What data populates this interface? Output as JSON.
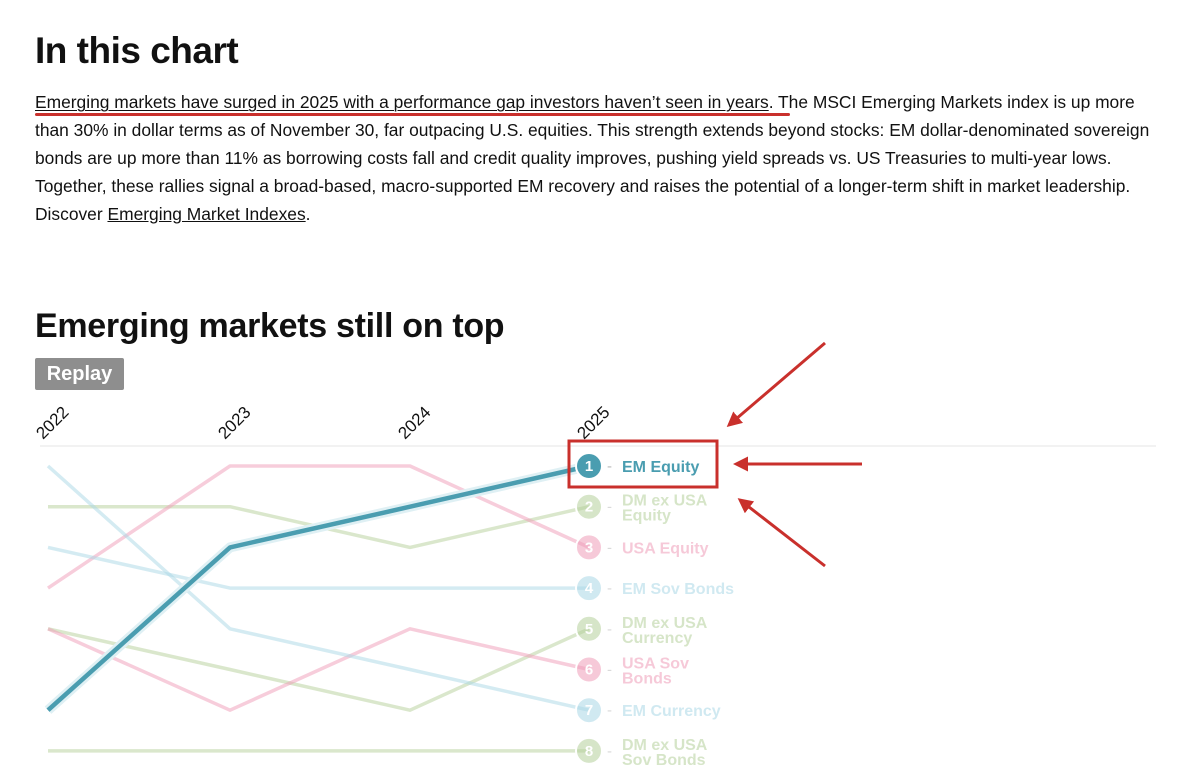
{
  "heading": "In this chart",
  "intro": {
    "highlight": "Emerging markets have surged in 2025 with a performance gap investors haven’t seen in years",
    "body": ". The MSCI Emerging Markets index is up more than 30% in dollar terms as of November 30, far outpacing U.S. equities. This strength extends beyond stocks: EM dollar-denominated sovereign bonds are up more than 11% as borrowing costs fall and credit quality improves, pushing yield spreads vs. US Treasuries to multi-year lows. Together, these rallies signal a broad-based, macro-supported EM recovery and raises the potential of a longer-term shift in market leadership. Discover ",
    "link": "Emerging Market Indexes",
    "end": "."
  },
  "chart_title": "Emerging markets still on top",
  "replay_label": "Replay",
  "colors": {
    "teal": "#4a9db0",
    "green": "#b5cf9a",
    "pink": "#ef9cb8",
    "lightblue": "#a9d7e6",
    "annotation_red": "#c9302c"
  },
  "chart_data": {
    "type": "line",
    "title": "Emerging markets still on top",
    "x": [
      "2022",
      "2023",
      "2024",
      "2025"
    ],
    "y_meaning": "rank (1 = best performing)",
    "ylim": [
      1,
      8
    ],
    "highlighted_series": "EM Equity",
    "series": [
      {
        "name": "EM Equity",
        "rank": 1,
        "color": "teal",
        "values": [
          7,
          3,
          2,
          1
        ]
      },
      {
        "name": "DM ex USA Equity",
        "rank": 2,
        "color": "green",
        "values": [
          2,
          2,
          3,
          2
        ]
      },
      {
        "name": "USA Equity",
        "rank": 3,
        "color": "pink",
        "values": [
          4,
          1,
          1,
          3
        ]
      },
      {
        "name": "EM Sov Bonds",
        "rank": 4,
        "color": "lightblue",
        "values": [
          3,
          4,
          4,
          4
        ]
      },
      {
        "name": "DM ex USA Currency",
        "rank": 5,
        "color": "green",
        "values": [
          5,
          6,
          7,
          5
        ]
      },
      {
        "name": "USA Sov Bonds",
        "rank": 6,
        "color": "pink",
        "values": [
          5,
          7,
          5,
          6
        ]
      },
      {
        "name": "EM Currency",
        "rank": 7,
        "color": "lightblue",
        "values": [
          1,
          5,
          6,
          7
        ]
      },
      {
        "name": "DM ex USA Sov Bonds",
        "rank": 8,
        "color": "green",
        "values": [
          8,
          8,
          8,
          8
        ]
      }
    ],
    "labels": [
      {
        "num": "1",
        "lines": [
          "EM Equity"
        ]
      },
      {
        "num": "2",
        "lines": [
          "DM ex USA",
          "Equity"
        ]
      },
      {
        "num": "3",
        "lines": [
          "USA Equity"
        ]
      },
      {
        "num": "4",
        "lines": [
          "EM Sov Bonds"
        ]
      },
      {
        "num": "5",
        "lines": [
          "DM ex USA",
          "Currency"
        ]
      },
      {
        "num": "6",
        "lines": [
          "USA Sov",
          "Bonds"
        ]
      },
      {
        "num": "7",
        "lines": [
          "EM Currency"
        ]
      },
      {
        "num": "8",
        "lines": [
          "DM ex USA",
          "Sov Bonds"
        ]
      }
    ]
  }
}
